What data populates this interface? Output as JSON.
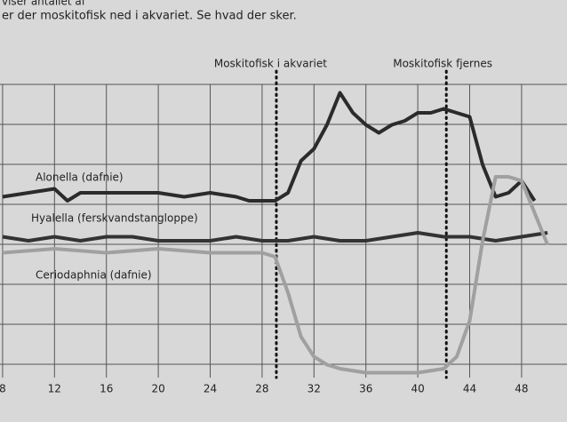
{
  "chart_data": {
    "type": "line",
    "text_lines": [
      "viser antallet af",
      "er der moskitofisk ned i akvariet. Se hvad der sker."
    ],
    "xlim": [
      7.8,
      51.5
    ],
    "xticks": [
      8,
      12,
      16,
      20,
      24,
      28,
      32,
      36,
      40,
      44,
      48
    ],
    "ylim": [
      0,
      10
    ],
    "grid": true,
    "annotations": [
      {
        "text": "Moskitofisk i akvariet",
        "x": 29.1
      },
      {
        "text": "Moskitofisk fjernes",
        "x": 42.2
      }
    ],
    "series": [
      {
        "name": "Alonella (dafnie)",
        "color": "#2b2b2b",
        "x": [
          8,
          10,
          12,
          13,
          14,
          16,
          18,
          20,
          22,
          24,
          26,
          27,
          28,
          29,
          30,
          31,
          32,
          33,
          34,
          35,
          36,
          37,
          38,
          39,
          40,
          41,
          42,
          43,
          44,
          45,
          46,
          47,
          48,
          49
        ],
        "values": [
          5.3,
          5.4,
          5.5,
          5.2,
          5.4,
          5.4,
          5.4,
          5.4,
          5.3,
          5.4,
          5.3,
          5.2,
          5.2,
          5.2,
          5.4,
          6.2,
          6.5,
          7.1,
          7.9,
          7.4,
          7.1,
          6.9,
          7.1,
          7.2,
          7.4,
          7.4,
          7.5,
          7.4,
          7.3,
          6.1,
          5.3,
          5.4,
          5.7,
          5.2
        ]
      },
      {
        "name": "Hyalella (ferskvandstangloppe)",
        "color": "#333333",
        "x": [
          8,
          10,
          12,
          14,
          16,
          18,
          20,
          22,
          24,
          26,
          28,
          30,
          32,
          34,
          36,
          38,
          40,
          42,
          44,
          46,
          48,
          50
        ],
        "values": [
          4.3,
          4.2,
          4.3,
          4.2,
          4.3,
          4.3,
          4.2,
          4.2,
          4.2,
          4.3,
          4.2,
          4.2,
          4.3,
          4.2,
          4.2,
          4.3,
          4.4,
          4.3,
          4.3,
          4.2,
          4.3,
          4.4
        ]
      },
      {
        "name": "Ceriodaphnia (dafnie)",
        "color": "#a0a0a0",
        "x": [
          8,
          12,
          16,
          20,
          24,
          28,
          29,
          30,
          31,
          32,
          33,
          34,
          36,
          38,
          40,
          42,
          43,
          44,
          45,
          46,
          47,
          48,
          49,
          50
        ],
        "values": [
          3.9,
          4.0,
          3.9,
          4.0,
          3.9,
          3.9,
          3.8,
          2.9,
          1.8,
          1.3,
          1.1,
          1.0,
          0.9,
          0.9,
          0.9,
          1.0,
          1.3,
          2.2,
          4.2,
          5.8,
          5.8,
          5.7,
          4.9,
          4.1
        ]
      }
    ]
  }
}
